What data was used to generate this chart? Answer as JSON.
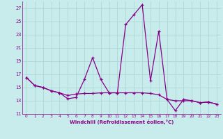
{
  "xlabel": "Windchill (Refroidissement éolien,°C)",
  "x": [
    0,
    1,
    2,
    3,
    4,
    5,
    6,
    7,
    8,
    9,
    10,
    11,
    12,
    13,
    14,
    15,
    16,
    17,
    18,
    19,
    20,
    21,
    22,
    23
  ],
  "y_temp": [
    16.5,
    15.3,
    15.0,
    14.5,
    14.2,
    13.3,
    13.5,
    16.2,
    19.5,
    16.2,
    14.2,
    14.2,
    24.5,
    26.0,
    27.5,
    16.0,
    23.5,
    13.2,
    11.5,
    13.2,
    13.0,
    12.7,
    12.8,
    12.5
  ],
  "y_windchill": [
    16.5,
    15.3,
    15.0,
    14.5,
    14.2,
    13.8,
    14.0,
    14.1,
    14.1,
    14.2,
    14.2,
    14.2,
    14.2,
    14.2,
    14.2,
    14.1,
    13.9,
    13.2,
    13.0,
    13.0,
    13.0,
    12.7,
    12.8,
    12.5
  ],
  "line_color": "#880088",
  "bg_color": "#c8ecec",
  "grid_color": "#a8d4d4",
  "ylim": [
    11,
    28
  ],
  "yticks": [
    11,
    13,
    15,
    17,
    19,
    21,
    23,
    25,
    27
  ],
  "xlim": [
    -0.5,
    23.5
  ],
  "xticks": [
    0,
    1,
    2,
    3,
    4,
    5,
    6,
    7,
    8,
    9,
    10,
    11,
    12,
    13,
    14,
    15,
    16,
    17,
    18,
    19,
    20,
    21,
    22,
    23
  ]
}
